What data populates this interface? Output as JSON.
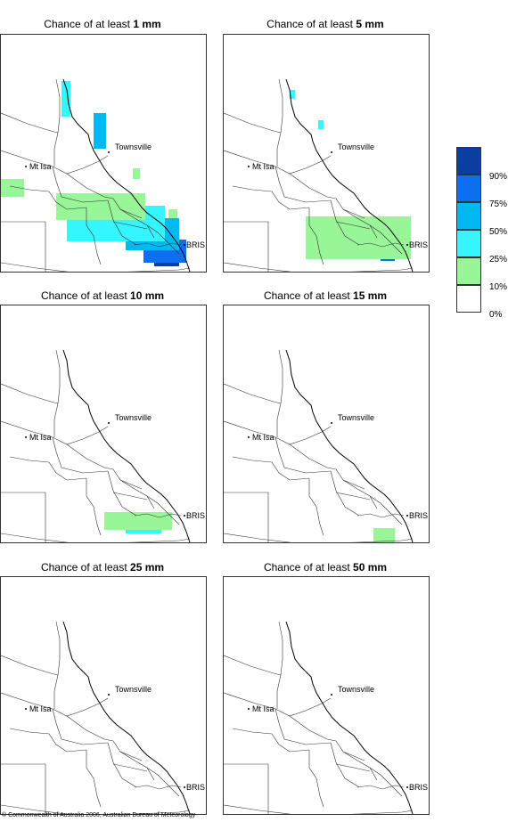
{
  "panels": [
    {
      "title_prefix": "Chance of at least ",
      "threshold": "1 mm"
    },
    {
      "title_prefix": "Chance of at least ",
      "threshold": "5 mm"
    },
    {
      "title_prefix": "Chance of at least ",
      "threshold": "10 mm"
    },
    {
      "title_prefix": "Chance of at least ",
      "threshold": "15 mm"
    },
    {
      "title_prefix": "Chance of at least ",
      "threshold": "25 mm"
    },
    {
      "title_prefix": "Chance of at least ",
      "threshold": "50 mm"
    }
  ],
  "places": {
    "townsville": "Townsville",
    "mt_isa": "Mt Isa",
    "bris": "BRIS"
  },
  "legend": {
    "labels": [
      "90%",
      "75%",
      "50%",
      "25%",
      "10%",
      "0%"
    ],
    "colors": [
      "#0a3fa0",
      "#0d6ef0",
      "#00b9f0",
      "#35f5ff",
      "#98f598",
      "#ffffff"
    ]
  },
  "copyright": "© Commonwealth of Australia 2006, Australian Bureau of Meteorology"
}
